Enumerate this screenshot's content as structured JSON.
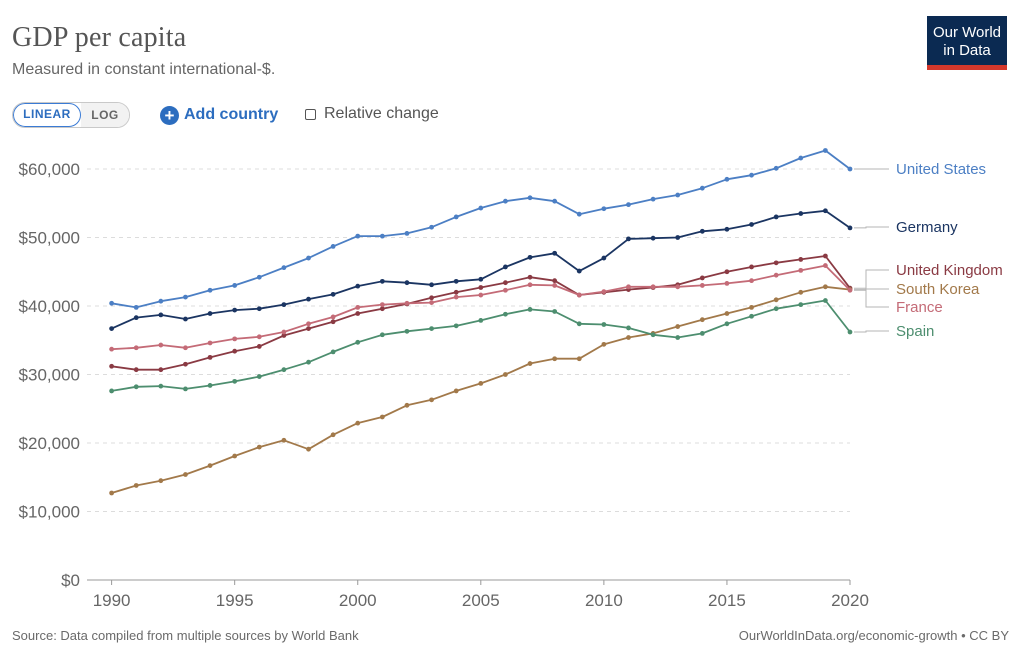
{
  "header": {
    "title": "GDP per capita",
    "subtitle": "Measured in constant international-$.",
    "logo_line1": "Our World",
    "logo_line2": "in Data"
  },
  "controls": {
    "linear_label": "LINEAR",
    "log_label": "LOG",
    "add_country_label": "Add country",
    "relative_change_label": "Relative change"
  },
  "footer": {
    "source": "Source: Data compiled from multiple sources by World Bank",
    "credit": "OurWorldInData.org/economic-growth • CC BY"
  },
  "chart_data": {
    "type": "line",
    "title": "GDP per capita",
    "x_ticks": [
      "1990",
      "1995",
      "2000",
      "2005",
      "2010",
      "2015",
      "2020"
    ],
    "y_ticks": [
      "$0",
      "$10,000",
      "$20,000",
      "$30,000",
      "$40,000",
      "$50,000",
      "$60,000"
    ],
    "xlim": [
      1990,
      2020
    ],
    "ylim": [
      0,
      60000
    ],
    "grid": "horizontal-dashed",
    "legend": "right-end-labels",
    "x": [
      1990,
      1991,
      1992,
      1993,
      1994,
      1995,
      1996,
      1997,
      1998,
      1999,
      2000,
      2001,
      2002,
      2003,
      2004,
      2005,
      2006,
      2007,
      2008,
      2009,
      2010,
      2011,
      2012,
      2013,
      2014,
      2015,
      2016,
      2017,
      2018,
      2019,
      2020
    ],
    "series": [
      {
        "name": "United States",
        "color": "#4c7fc4",
        "values": [
          40400,
          39800,
          40700,
          41300,
          42300,
          43000,
          44200,
          45600,
          47000,
          48700,
          50200,
          50200,
          50600,
          51500,
          53000,
          54300,
          55300,
          55800,
          55300,
          53400,
          54200,
          54800,
          55600,
          56200,
          57200,
          58500,
          59100,
          60100,
          61600,
          62700,
          60000
        ]
      },
      {
        "name": "Germany",
        "color": "#1b3562",
        "values": [
          36700,
          38300,
          38700,
          38100,
          38900,
          39400,
          39600,
          40200,
          41000,
          41700,
          42900,
          43600,
          43400,
          43100,
          43600,
          43900,
          45700,
          47100,
          47700,
          45100,
          47000,
          49800,
          49900,
          50000,
          50900,
          51200,
          51900,
          53000,
          53500,
          53900,
          51400
        ]
      },
      {
        "name": "United Kingdom",
        "color": "#8a3a43",
        "values": [
          31200,
          30700,
          30700,
          31500,
          32500,
          33400,
          34100,
          35700,
          36700,
          37700,
          38900,
          39600,
          40300,
          41200,
          42000,
          42700,
          43400,
          44200,
          43700,
          41600,
          42000,
          42400,
          42700,
          43100,
          44100,
          45000,
          45700,
          46300,
          46800,
          47300,
          42600
        ]
      },
      {
        "name": "South Korea",
        "color": "#a2794a",
        "values": [
          12700,
          13800,
          14500,
          15400,
          16700,
          18100,
          19400,
          20400,
          19100,
          21200,
          22900,
          23800,
          25500,
          26300,
          27600,
          28700,
          30000,
          31600,
          32300,
          32300,
          34400,
          35400,
          36000,
          37000,
          38000,
          38900,
          39800,
          40900,
          42000,
          42800,
          42400
        ]
      },
      {
        "name": "France",
        "color": "#c46b77",
        "values": [
          33700,
          33900,
          34300,
          33900,
          34600,
          35200,
          35500,
          36200,
          37400,
          38400,
          39800,
          40200,
          40400,
          40500,
          41300,
          41600,
          42300,
          43100,
          43000,
          41600,
          42100,
          42800,
          42800,
          42800,
          43000,
          43300,
          43700,
          44500,
          45200,
          45900,
          42300
        ]
      },
      {
        "name": "Spain",
        "color": "#4d8e6f",
        "values": [
          27600,
          28200,
          28300,
          27900,
          28400,
          29000,
          29700,
          30700,
          31800,
          33300,
          34700,
          35800,
          36300,
          36700,
          37100,
          37900,
          38800,
          39500,
          39200,
          37400,
          37300,
          36800,
          35800,
          35400,
          36000,
          37400,
          38500,
          39600,
          40200,
          40800,
          36200
        ]
      }
    ]
  }
}
